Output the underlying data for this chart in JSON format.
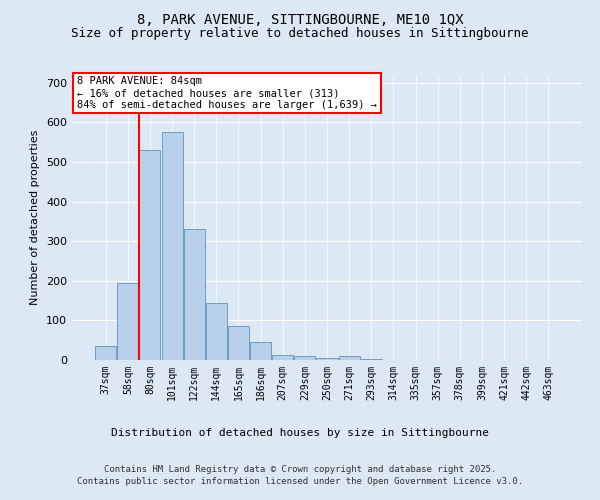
{
  "title1": "8, PARK AVENUE, SITTINGBOURNE, ME10 1QX",
  "title2": "Size of property relative to detached houses in Sittingbourne",
  "xlabel": "Distribution of detached houses by size in Sittingbourne",
  "ylabel": "Number of detached properties",
  "bar_labels": [
    "37sqm",
    "58sqm",
    "80sqm",
    "101sqm",
    "122sqm",
    "144sqm",
    "165sqm",
    "186sqm",
    "207sqm",
    "229sqm",
    "250sqm",
    "271sqm",
    "293sqm",
    "314sqm",
    "335sqm",
    "357sqm",
    "378sqm",
    "399sqm",
    "421sqm",
    "442sqm",
    "463sqm"
  ],
  "bar_values": [
    35,
    195,
    530,
    575,
    330,
    143,
    86,
    46,
    12,
    10,
    5,
    10,
    2,
    0,
    0,
    0,
    0,
    0,
    0,
    0,
    0
  ],
  "bar_color": "#b8d0ea",
  "bar_edgecolor": "#6a9fc8",
  "annotation_title": "8 PARK AVENUE: 84sqm",
  "annotation_line1": "← 16% of detached houses are smaller (313)",
  "annotation_line2": "84% of semi-detached houses are larger (1,639) →",
  "vline_x_index": 2,
  "background_color": "#dde8f5",
  "plot_bg_color": "#dde8f5",
  "footer1": "Contains HM Land Registry data © Crown copyright and database right 2025.",
  "footer2": "Contains public sector information licensed under the Open Government Licence v3.0.",
  "ylim": [
    0,
    720
  ],
  "yticks": [
    0,
    100,
    200,
    300,
    400,
    500,
    600,
    700
  ],
  "title1_fontsize": 10,
  "title2_fontsize": 9,
  "ylabel_fontsize": 8,
  "xlabel_fontsize": 8,
  "tick_fontsize": 7,
  "footer_fontsize": 6.5,
  "ann_fontsize": 7.5
}
